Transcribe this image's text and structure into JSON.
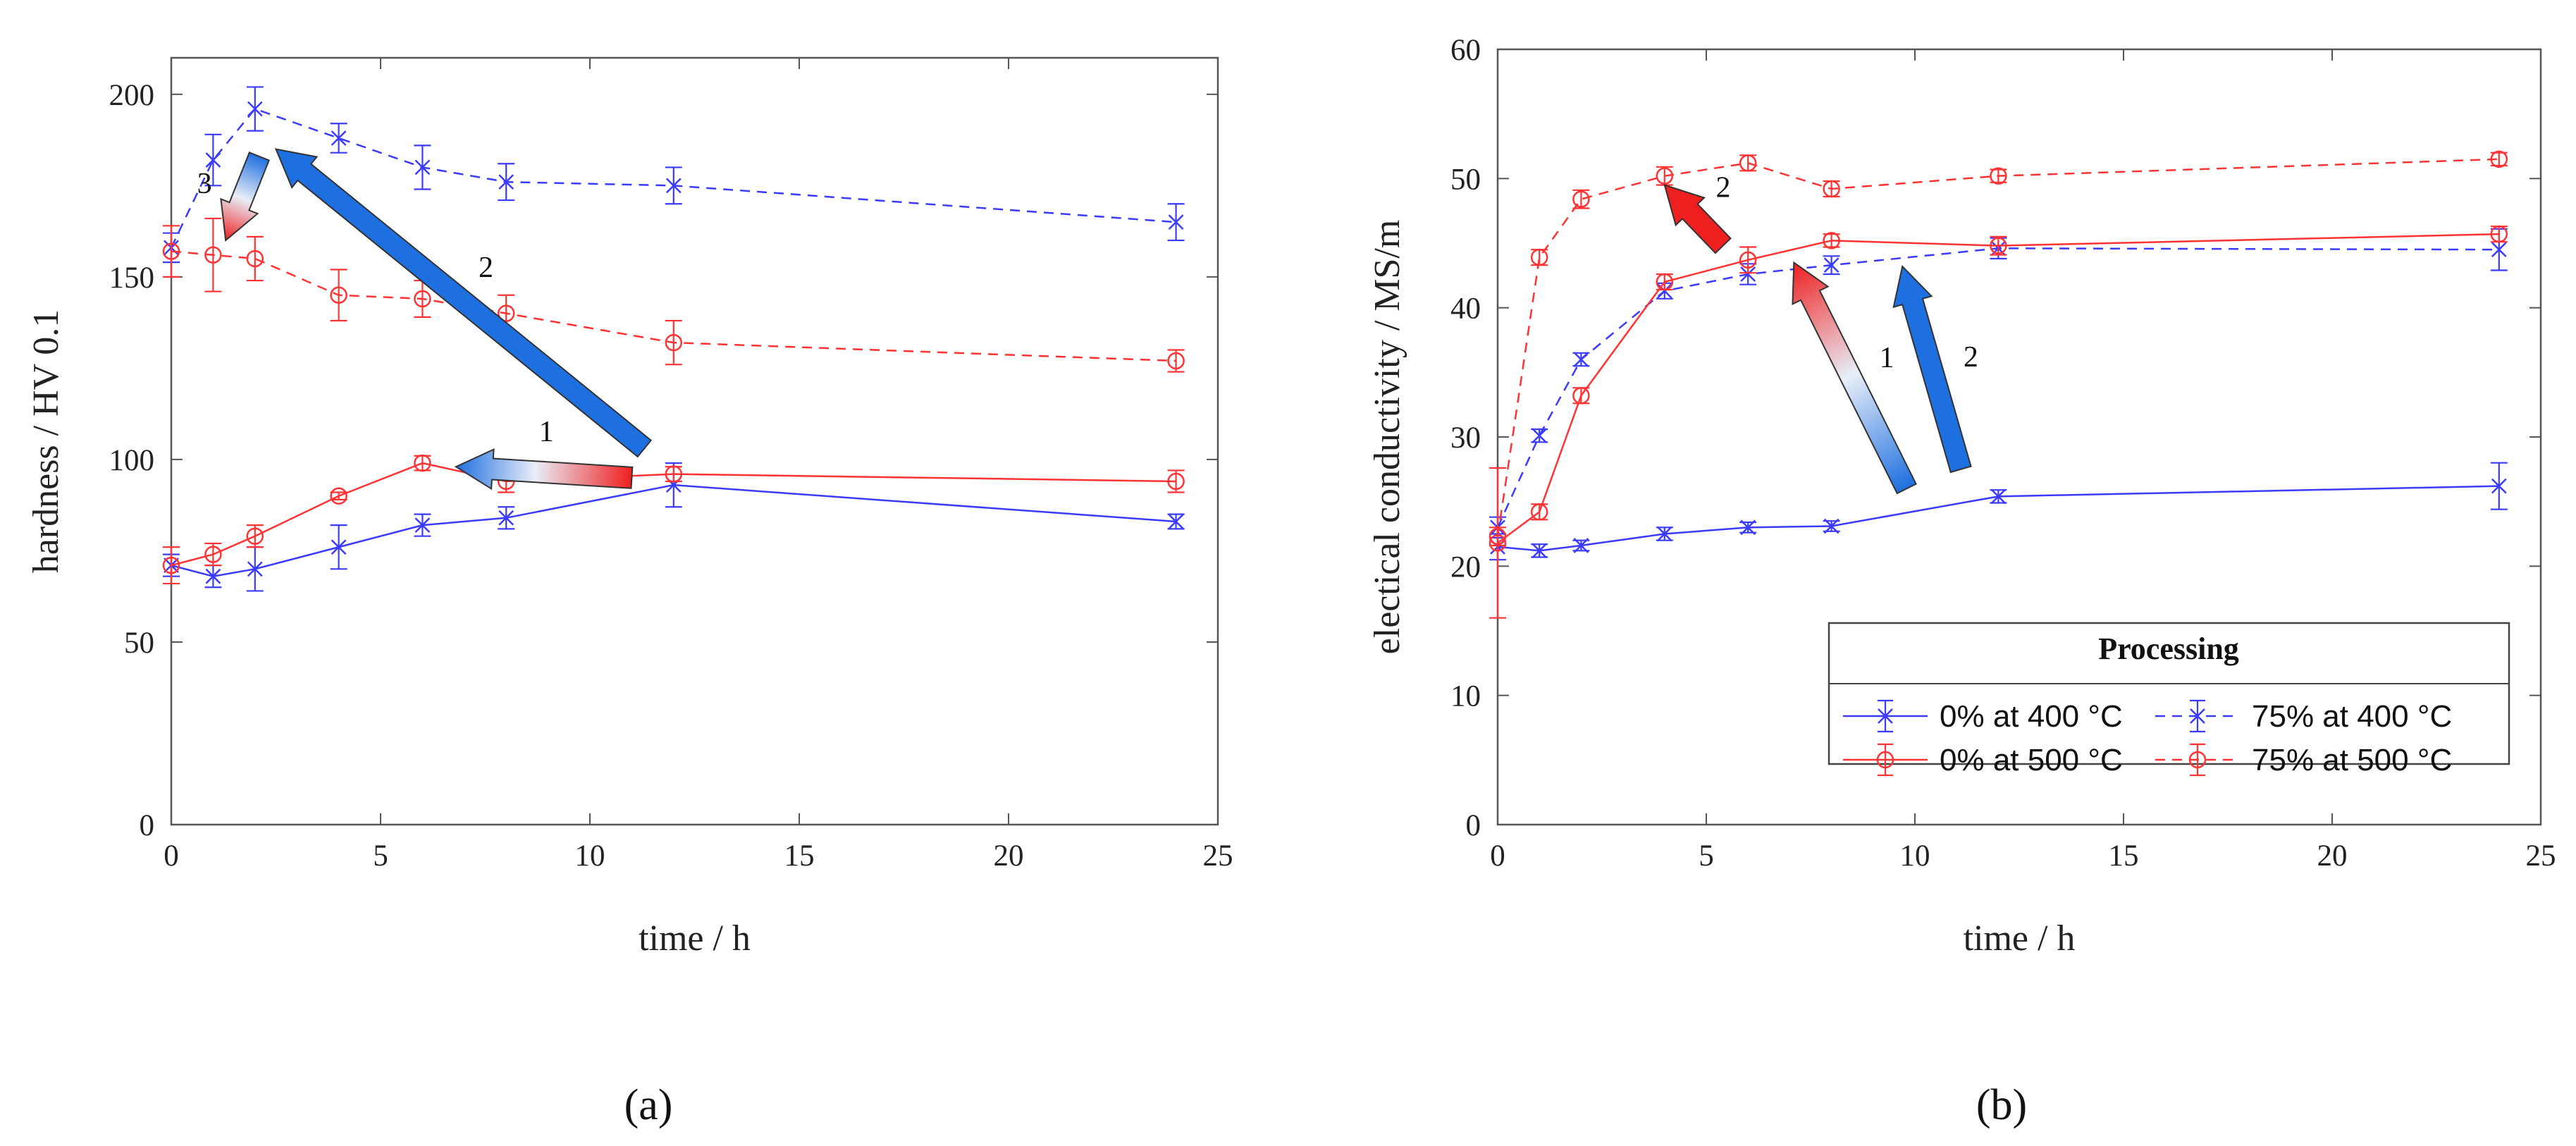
{
  "colors": {
    "blue": "#3b3bff",
    "red": "#ff3333",
    "arrow_blue": "#1e6fe0",
    "arrow_red": "#ee1f1f"
  },
  "legend": {
    "title": "Processing",
    "entries": [
      "0% at 400 °C",
      "75% at 400 °C",
      "0% at 500 °C",
      "75% at 500 °C"
    ]
  },
  "chart_data": [
    {
      "type": "line",
      "panel_label": "(a)",
      "xlabel": "time / h",
      "ylabel": "hardness / HV 0.1",
      "xlim": [
        0,
        25
      ],
      "ylim": [
        0,
        210
      ],
      "xticks": [
        0,
        5,
        10,
        15,
        20,
        25
      ],
      "yticks": [
        0,
        50,
        100,
        150,
        200
      ],
      "series": [
        {
          "name": "0% at 400 °C",
          "color": "#3b3bff",
          "dash": false,
          "marker": "x",
          "x": [
            0,
            1,
            2,
            4,
            6,
            8,
            12,
            24
          ],
          "y": [
            71,
            68,
            70,
            76,
            82,
            84,
            93,
            83
          ],
          "err": [
            3,
            3,
            6,
            6,
            3,
            3,
            6,
            2
          ]
        },
        {
          "name": "75% at 400 °C",
          "color": "#3b3bff",
          "dash": true,
          "marker": "x",
          "x": [
            0,
            1,
            2,
            4,
            6,
            8,
            12,
            24
          ],
          "y": [
            158,
            182,
            196,
            188,
            180,
            176,
            175,
            165
          ],
          "err": [
            4,
            7,
            6,
            4,
            6,
            5,
            5,
            5
          ]
        },
        {
          "name": "0% at 500 °C",
          "color": "#ff3333",
          "dash": false,
          "marker": "o",
          "x": [
            0,
            1,
            2,
            4,
            6,
            8,
            12,
            24
          ],
          "y": [
            71,
            74,
            79,
            90,
            99,
            94,
            96,
            94
          ],
          "err": [
            5,
            3,
            3,
            1,
            2,
            3,
            2,
            3
          ]
        },
        {
          "name": "75% at 500 °C",
          "color": "#ff3333",
          "dash": true,
          "marker": "o",
          "x": [
            0,
            1,
            2,
            4,
            6,
            8,
            12,
            24
          ],
          "y": [
            157,
            156,
            155,
            145,
            144,
            140,
            132,
            127
          ],
          "err": [
            7,
            10,
            6,
            7,
            5,
            5,
            6,
            3
          ]
        }
      ],
      "arrows": [
        {
          "label": "1",
          "from": [
            11,
            95
          ],
          "to": [
            6.8,
            98
          ],
          "style": "red-to-blue"
        },
        {
          "label": "2",
          "from": [
            11.3,
            103
          ],
          "to": [
            2.5,
            185
          ],
          "style": "blue"
        },
        {
          "label": "3",
          "from": [
            2.1,
            183
          ],
          "to": [
            1.3,
            160
          ],
          "style": "blue-to-red"
        }
      ]
    },
    {
      "type": "line",
      "panel_label": "(b)",
      "xlabel": "time / h",
      "ylabel": "electical conductivity / MS/m",
      "xlim": [
        0,
        25
      ],
      "ylim": [
        0,
        60
      ],
      "xticks": [
        0,
        5,
        10,
        15,
        20,
        25
      ],
      "yticks": [
        0,
        10,
        20,
        30,
        40,
        50,
        60
      ],
      "series": [
        {
          "name": "0% at 400 °C",
          "color": "#3b3bff",
          "dash": false,
          "marker": "x",
          "x": [
            0,
            1,
            2,
            4,
            6,
            8,
            12,
            24
          ],
          "y": [
            21.5,
            21.2,
            21.6,
            22.5,
            23.0,
            23.1,
            25.4,
            26.2
          ],
          "err": [
            1.0,
            0.5,
            0.4,
            0.5,
            0.4,
            0.4,
            0.5,
            1.8
          ]
        },
        {
          "name": "75% at 400 °C",
          "color": "#3b3bff",
          "dash": true,
          "marker": "x",
          "x": [
            0,
            1,
            2,
            4,
            6,
            8,
            12,
            24
          ],
          "y": [
            23.0,
            30.1,
            36.0,
            41.3,
            42.6,
            43.3,
            44.6,
            44.5
          ],
          "err": [
            0.8,
            0.5,
            0.5,
            0.6,
            0.8,
            0.7,
            0.8,
            1.6
          ]
        },
        {
          "name": "0% at 500 °C",
          "color": "#ff3333",
          "dash": false,
          "marker": "o",
          "x": [
            0,
            1,
            2,
            4,
            6,
            8,
            12,
            24
          ],
          "y": [
            21.8,
            24.2,
            33.2,
            42.0,
            43.7,
            45.2,
            44.8,
            45.7
          ],
          "err": [
            5.8,
            0.6,
            0.6,
            0.6,
            1.0,
            0.5,
            0.7,
            0.6
          ]
        },
        {
          "name": "75% at 500 °C",
          "color": "#ff3333",
          "dash": true,
          "marker": "o",
          "x": [
            0,
            1,
            2,
            4,
            6,
            8,
            12,
            24
          ],
          "y": [
            22.3,
            43.9,
            48.4,
            50.2,
            51.2,
            49.2,
            50.2,
            51.5
          ],
          "err": [
            0.7,
            0.6,
            0.7,
            0.7,
            0.6,
            0.6,
            0.5,
            0.5
          ]
        }
      ],
      "arrows": [
        {
          "label": "1",
          "from": [
            9.8,
            26
          ],
          "to": [
            7.1,
            43.5
          ],
          "style": "blue-to-red"
        },
        {
          "label": "2",
          "from": [
            5.4,
            44.8
          ],
          "to": [
            4.0,
            49.5
          ],
          "style": "red"
        },
        {
          "label": "2",
          "from": [
            11.1,
            27.5
          ],
          "to": [
            9.7,
            43.2
          ],
          "style": "blue"
        }
      ]
    }
  ]
}
